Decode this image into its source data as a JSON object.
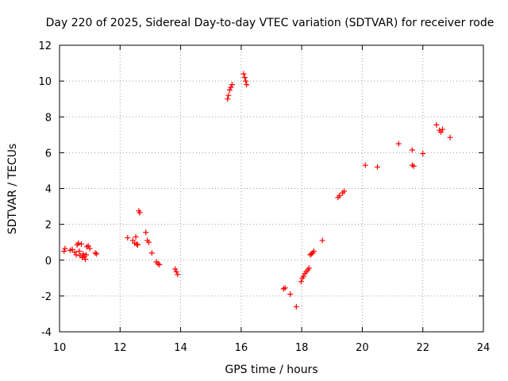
{
  "chart_data": {
    "type": "scatter",
    "title": "Day 220 of 2025, Sidereal Day-to-day VTEC variation (SDTVAR) for receiver rode",
    "xlabel": "GPS time / hours",
    "ylabel": "SDTVAR / TECUs",
    "xlim": [
      10,
      24
    ],
    "ylim": [
      -4,
      12
    ],
    "xticks": [
      10,
      12,
      14,
      16,
      18,
      20,
      22,
      24
    ],
    "yticks": [
      -4,
      -2,
      0,
      2,
      4,
      6,
      8,
      10,
      12
    ],
    "grid": true,
    "marker": "+",
    "marker_color": "#ff0000",
    "series": [
      {
        "name": "SDTVAR",
        "points": [
          [
            10.15,
            0.5
          ],
          [
            10.18,
            0.65
          ],
          [
            10.35,
            0.55
          ],
          [
            10.42,
            0.6
          ],
          [
            10.5,
            0.45
          ],
          [
            10.55,
            0.3
          ],
          [
            10.58,
            0.85
          ],
          [
            10.62,
            0.95
          ],
          [
            10.65,
            0.5
          ],
          [
            10.68,
            0.25
          ],
          [
            10.72,
            0.9
          ],
          [
            10.75,
            0.15
          ],
          [
            10.78,
            0.35
          ],
          [
            10.82,
            0.2
          ],
          [
            10.85,
            0.05
          ],
          [
            10.88,
            0.3
          ],
          [
            10.9,
            0.75
          ],
          [
            10.95,
            0.8
          ],
          [
            11.0,
            0.65
          ],
          [
            11.18,
            0.4
          ],
          [
            11.22,
            0.35
          ],
          [
            12.25,
            1.25
          ],
          [
            12.42,
            1.1
          ],
          [
            12.48,
            0.95
          ],
          [
            12.52,
            1.3
          ],
          [
            12.55,
            0.9
          ],
          [
            12.58,
            0.85
          ],
          [
            12.62,
            2.75
          ],
          [
            12.65,
            2.65
          ],
          [
            12.85,
            1.55
          ],
          [
            12.9,
            1.1
          ],
          [
            12.95,
            1.0
          ],
          [
            13.05,
            0.4
          ],
          [
            13.2,
            -0.1
          ],
          [
            13.25,
            -0.2
          ],
          [
            13.3,
            -0.25
          ],
          [
            13.82,
            -0.5
          ],
          [
            13.86,
            -0.65
          ],
          [
            13.9,
            -0.8
          ],
          [
            15.55,
            9.0
          ],
          [
            15.58,
            9.2
          ],
          [
            15.62,
            9.5
          ],
          [
            15.66,
            9.65
          ],
          [
            15.7,
            9.8
          ],
          [
            16.08,
            10.4
          ],
          [
            16.12,
            10.2
          ],
          [
            16.15,
            10.0
          ],
          [
            16.18,
            9.8
          ],
          [
            17.4,
            -1.6
          ],
          [
            17.45,
            -1.55
          ],
          [
            17.62,
            -1.9
          ],
          [
            17.82,
            -2.6
          ],
          [
            17.98,
            -1.2
          ],
          [
            18.02,
            -1.0
          ],
          [
            18.06,
            -0.9
          ],
          [
            18.1,
            -0.75
          ],
          [
            18.15,
            -0.65
          ],
          [
            18.2,
            -0.55
          ],
          [
            18.24,
            -0.45
          ],
          [
            18.28,
            0.3
          ],
          [
            18.32,
            0.35
          ],
          [
            18.36,
            0.4
          ],
          [
            18.4,
            0.5
          ],
          [
            18.68,
            1.1
          ],
          [
            19.2,
            3.5
          ],
          [
            19.25,
            3.6
          ],
          [
            19.35,
            3.75
          ],
          [
            19.4,
            3.85
          ],
          [
            20.1,
            5.3
          ],
          [
            20.5,
            5.2
          ],
          [
            21.2,
            6.5
          ],
          [
            21.65,
            6.15
          ],
          [
            21.65,
            5.3
          ],
          [
            21.7,
            5.25
          ],
          [
            22.0,
            5.95
          ],
          [
            22.45,
            7.55
          ],
          [
            22.55,
            7.25
          ],
          [
            22.6,
            7.15
          ],
          [
            22.65,
            7.3
          ],
          [
            22.9,
            6.85
          ]
        ]
      }
    ]
  }
}
